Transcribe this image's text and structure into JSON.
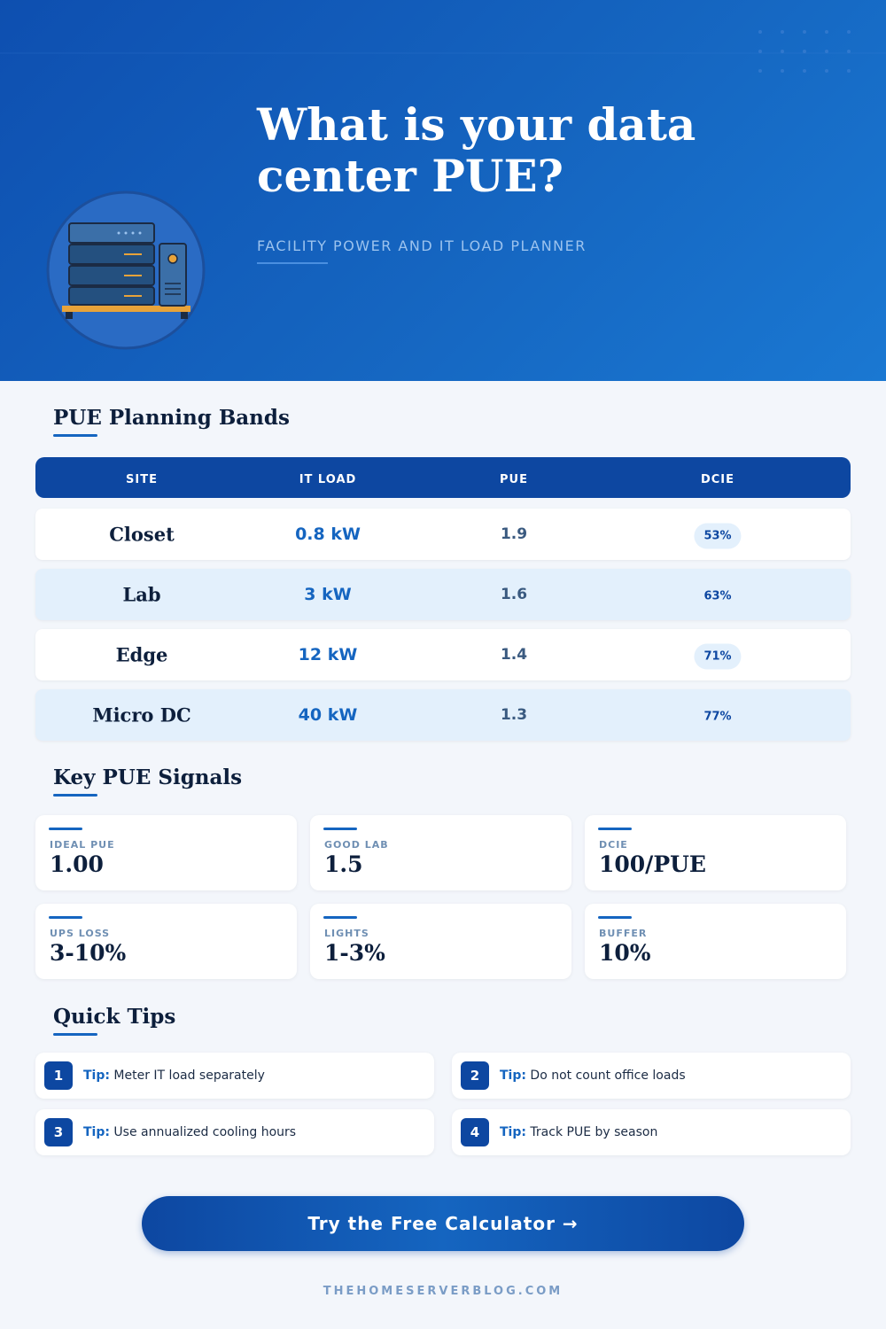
{
  "header": {
    "title": "What is your data center PUE?",
    "subtitle": "FACILITY POWER AND IT LOAD PLANNER"
  },
  "table": {
    "heading": "PUE Planning Bands",
    "columns": [
      "SITE",
      "IT LOAD",
      "PUE",
      "DCIE"
    ],
    "rows": [
      [
        "Closet",
        "0.8 kW",
        "1.9",
        "53%"
      ],
      [
        "Lab",
        "3 kW",
        "1.6",
        "63%"
      ],
      [
        "Edge",
        "12 kW",
        "1.4",
        "71%"
      ],
      [
        "Micro DC",
        "40 kW",
        "1.3",
        "77%"
      ]
    ]
  },
  "signals": {
    "heading": "Key PUE Signals",
    "items": [
      {
        "label": "IDEAL PUE",
        "value": "1.00"
      },
      {
        "label": "GOOD LAB",
        "value": "1.5"
      },
      {
        "label": "DCIE",
        "value": "100/PUE"
      },
      {
        "label": "UPS LOSS",
        "value": "3-10%"
      },
      {
        "label": "LIGHTS",
        "value": "1-3%"
      },
      {
        "label": "BUFFER",
        "value": "10%"
      }
    ]
  },
  "tips": {
    "heading": "Quick Tips",
    "items": [
      {
        "number": "1",
        "label": "Tip:",
        "text": "Meter IT load separately"
      },
      {
        "number": "2",
        "label": "Tip:",
        "text": "Do not count office loads"
      },
      {
        "number": "3",
        "label": "Tip:",
        "text": "Use annualized cooling hours"
      },
      {
        "number": "4",
        "label": "Tip:",
        "text": "Track PUE by season"
      }
    ]
  },
  "cta": "Try the Free Calculator →",
  "footer": "THEHOMESERVERBLOG.COM"
}
